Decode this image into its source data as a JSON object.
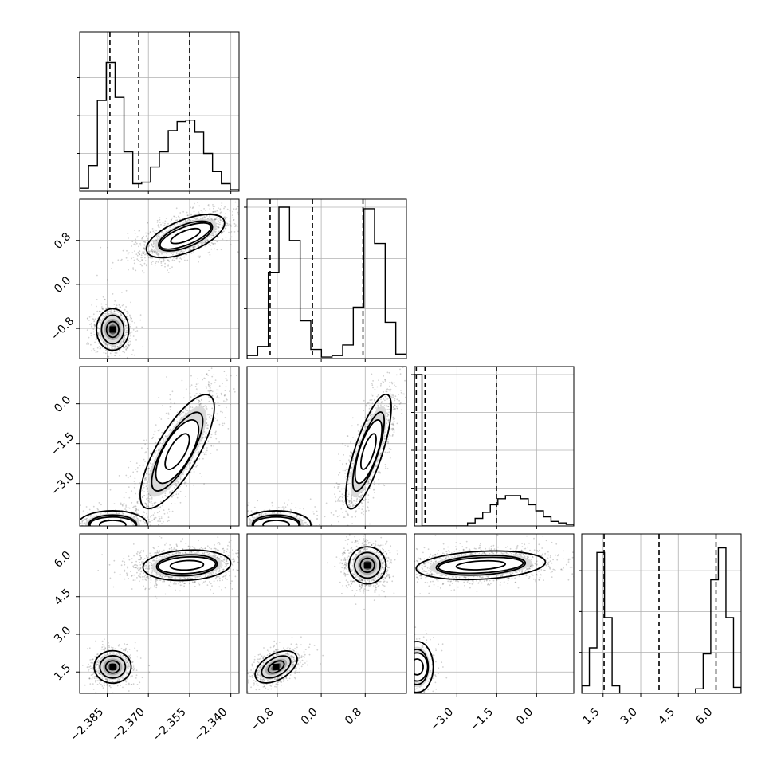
{
  "chart_data": {
    "type": "corner",
    "parameters": [
      "",
      "",
      "",
      ""
    ],
    "panels": [
      {
        "row": 0,
        "col": 0,
        "type": "histogram",
        "range": [
          -2.395,
          -2.337
        ],
        "edges_range": [
          -2.395,
          -2.337
        ],
        "counts": [
          0.02,
          0.17,
          0.6,
          0.85,
          0.62,
          0.26,
          0.05,
          0.06,
          0.16,
          0.26,
          0.4,
          0.46,
          0.47,
          0.39,
          0.25,
          0.13,
          0.05,
          0.01
        ],
        "quantiles": [
          -2.384,
          -2.3735,
          -2.355
        ],
        "yticks": [
          0.25,
          0.5,
          0.75
        ]
      },
      {
        "row": 1,
        "col": 0,
        "type": "density2d",
        "xlim": [
          -2.395,
          -2.337
        ],
        "ylim": [
          -1.35,
          1.55
        ],
        "clusters": [
          {
            "x": -2.383,
            "y": -0.82
          },
          {
            "x": -2.3565,
            "y": 0.88
          }
        ]
      },
      {
        "row": 1,
        "col": 1,
        "type": "histogram",
        "range": [
          -1.35,
          1.55
        ],
        "counts": [
          0.02,
          0.08,
          0.57,
          1.0,
          0.78,
          0.25,
          0.06,
          0.01,
          0.02,
          0.09,
          0.34,
          0.99,
          0.76,
          0.24,
          0.03
        ],
        "quantiles": [
          -0.93,
          -0.16,
          0.76
        ],
        "yticks": [
          0.33,
          0.66,
          1.0
        ]
      },
      {
        "row": 2,
        "col": 0,
        "type": "density2d",
        "xlim": [
          -2.395,
          -2.337
        ],
        "ylim": [
          -4.6,
          1.4
        ],
        "clusters": [
          {
            "x": -2.383,
            "y": -4.55
          },
          {
            "x": -2.3595,
            "y": -1.8
          }
        ]
      },
      {
        "row": 2,
        "col": 1,
        "type": "density2d",
        "xlim": [
          -1.35,
          1.55
        ],
        "ylim": [
          -4.6,
          1.4
        ],
        "clusters": [
          {
            "x": -0.82,
            "y": -4.55
          },
          {
            "x": 0.86,
            "y": -1.8
          }
        ]
      },
      {
        "row": 2,
        "col": 2,
        "type": "histogram",
        "range": [
          -4.6,
          1.4
        ],
        "counts": [
          1.0,
          0.0,
          0.0,
          0.0,
          0.0,
          0.0,
          0.0,
          0.02,
          0.05,
          0.09,
          0.14,
          0.18,
          0.2,
          0.2,
          0.18,
          0.14,
          0.1,
          0.06,
          0.03,
          0.02,
          0.01
        ],
        "quantiles": [
          -4.53,
          -4.2,
          -1.51
        ],
        "yticks": [
          0.25,
          0.5,
          0.75,
          1.0
        ]
      },
      {
        "row": 3,
        "col": 0,
        "type": "density2d",
        "xlim": [
          -2.395,
          -2.337
        ],
        "ylim": [
          0.65,
          7.0
        ],
        "clusters": [
          {
            "x": -2.383,
            "y": 1.7
          },
          {
            "x": -2.356,
            "y": 5.75
          }
        ]
      },
      {
        "row": 3,
        "col": 1,
        "type": "density2d",
        "xlim": [
          -1.35,
          1.55
        ],
        "ylim": [
          0.65,
          7.0
        ],
        "clusters": [
          {
            "x": -0.82,
            "y": 1.7
          },
          {
            "x": 0.84,
            "y": 5.75
          }
        ]
      },
      {
        "row": 3,
        "col": 2,
        "type": "density2d",
        "xlim": [
          -4.6,
          1.4
        ],
        "ylim": [
          0.65,
          7.0
        ],
        "clusters": [
          {
            "x": -4.5,
            "y": 1.7
          },
          {
            "x": -2.1,
            "y": 5.75
          }
        ]
      },
      {
        "row": 3,
        "col": 3,
        "type": "histogram",
        "range": [
          0.65,
          7.0
        ],
        "counts": [
          0.05,
          0.3,
          0.93,
          0.5,
          0.05,
          0.0,
          0.0,
          0.0,
          0.0,
          0.0,
          0.0,
          0.0,
          0.0,
          0.0,
          0.0,
          0.03,
          0.26,
          0.75,
          0.96,
          0.5,
          0.04
        ],
        "quantiles": [
          1.54,
          3.73,
          6.0
        ],
        "yticks": [
          0.27,
          0.54,
          0.81
        ]
      }
    ],
    "axes": {
      "x": [
        {
          "col": 0,
          "lim": [
            -2.395,
            -2.337
          ],
          "ticks": [
            -2.385,
            -2.37,
            -2.355,
            -2.34
          ],
          "labels": [
            "−2.385",
            "−2.370",
            "−2.355",
            "−2.340"
          ]
        },
        {
          "col": 1,
          "lim": [
            -1.35,
            1.55
          ],
          "ticks": [
            -0.8,
            0.0,
            0.8
          ],
          "labels": [
            "−0.8",
            "0.0",
            "0.8"
          ]
        },
        {
          "col": 2,
          "lim": [
            -4.6,
            1.4
          ],
          "ticks": [
            -3.0,
            -1.5,
            0.0
          ],
          "labels": [
            "−3.0",
            "−1.5",
            "0.0"
          ]
        },
        {
          "col": 3,
          "lim": [
            0.65,
            7.0
          ],
          "ticks": [
            1.5,
            3.0,
            4.5,
            6.0
          ],
          "labels": [
            "1.5",
            "3.0",
            "4.5",
            "6.0"
          ]
        }
      ],
      "y": [
        {
          "row": 1,
          "lim": [
            -1.35,
            1.55
          ],
          "ticks": [
            -0.8,
            0.0,
            0.8
          ],
          "labels": [
            "−0.8",
            "0.0",
            "0.8"
          ]
        },
        {
          "row": 2,
          "lim": [
            -4.6,
            1.4
          ],
          "ticks": [
            -3.0,
            -1.5,
            0.0
          ],
          "labels": [
            "−3.0",
            "−1.5",
            "0.0"
          ]
        },
        {
          "row": 3,
          "lim": [
            0.65,
            7.0
          ],
          "ticks": [
            1.5,
            3.0,
            4.5,
            6.0
          ],
          "labels": [
            "1.5",
            "3.0",
            "4.5",
            "6.0"
          ]
        }
      ]
    },
    "grid": true,
    "contour_levels": 3,
    "colors": {
      "hist": "#000000",
      "contour": "#000000",
      "points": "#555555",
      "grid": "#b0b0b0"
    }
  }
}
